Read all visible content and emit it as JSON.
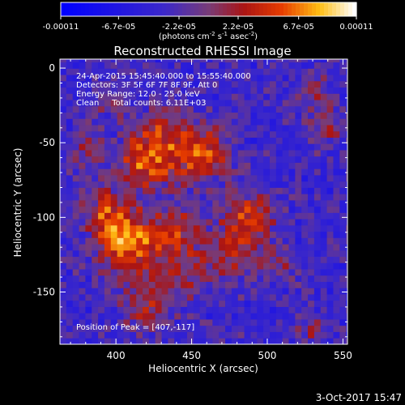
{
  "chart_data": {
    "type": "heatmap",
    "title": "Reconstructed RHESSI Image",
    "xlabel": "Heliocentric X (arcsec)",
    "ylabel": "Heliocentric Y (arcsec)",
    "xlim": [
      363,
      553
    ],
    "ylim": [
      -185,
      6
    ],
    "xticks": [
      400,
      450,
      500,
      550
    ],
    "yticks": [
      0,
      -50,
      -100,
      -150
    ],
    "colorbar": {
      "range": [
        -0.00011,
        0.00011
      ],
      "tick_values": [
        -0.00011,
        -6.7e-05,
        -2.2e-05,
        2.2e-05,
        6.7e-05,
        0.00011
      ],
      "tick_labels": [
        "-0.00011",
        "-6.7e-05",
        "-2.2e-05",
        "2.2e-05",
        "6.7e-05",
        "0.00011"
      ],
      "unit_main": "(photons cm",
      "unit_sup1": "-2",
      "unit_mid1": " s",
      "unit_sup2": "-1",
      "unit_mid2": " asec",
      "unit_sup3": "-2",
      "unit_end": ")"
    },
    "annotations": {
      "line1": "24-Apr-2015 15:45:40.000 to 15:55:40.000",
      "line2": "Detectors: 3F 5F 6F 7F 8F 9F, Att 0",
      "line3": "Energy Range: 12.0 - 25.0 keV",
      "line4": "Clean     Total counts: 6.11E+03",
      "peak": "Position of Peak = [407,-117]"
    },
    "sources": [
      {
        "x": 407,
        "y": -117,
        "amp": 0.00011,
        "s": 14
      },
      {
        "x": 420,
        "y": -63,
        "amp": 9e-05,
        "s": 13
      },
      {
        "x": 456,
        "y": -58,
        "amp": 9.5e-05,
        "s": 12
      },
      {
        "x": 395,
        "y": -95,
        "amp": 6e-05,
        "s": 11
      },
      {
        "x": 432,
        "y": -40,
        "amp": 5e-05,
        "s": 12
      },
      {
        "x": 440,
        "y": -110,
        "amp": 6e-05,
        "s": 13
      },
      {
        "x": 488,
        "y": -100,
        "amp": 7e-05,
        "s": 12
      },
      {
        "x": 475,
        "y": -125,
        "amp": 5e-05,
        "s": 12
      },
      {
        "x": 420,
        "y": -160,
        "amp": 5e-05,
        "s": 12
      },
      {
        "x": 445,
        "y": -140,
        "amp": 4e-05,
        "s": 12
      },
      {
        "x": 380,
        "y": -55,
        "amp": 4e-05,
        "s": 9
      },
      {
        "x": 395,
        "y": -20,
        "amp": 3e-05,
        "s": 9
      },
      {
        "x": 540,
        "y": -40,
        "amp": 5e-05,
        "s": 8
      },
      {
        "x": 532,
        "y": -15,
        "amp": 4e-05,
        "s": 8
      },
      {
        "x": 505,
        "y": -130,
        "amp": 4e-05,
        "s": 9
      },
      {
        "x": 530,
        "y": -175,
        "amp": 4e-05,
        "s": 8
      }
    ]
  },
  "footer": {
    "date": "3-Oct-2017 15:47"
  }
}
